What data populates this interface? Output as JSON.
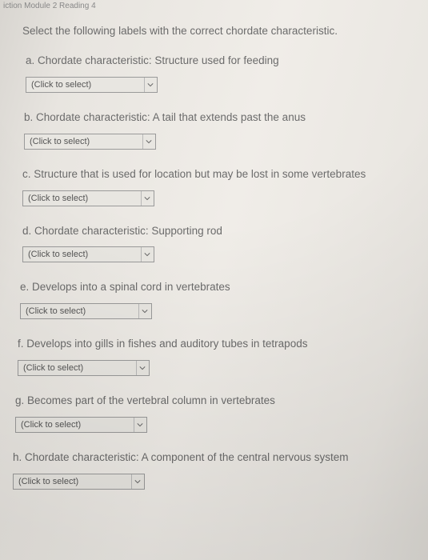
{
  "breadcrumb": "iction Module 2 Reading 4",
  "instruction": "Select the following labels with the correct chordate characteristic.",
  "select_placeholder": "(Click to select)",
  "questions": [
    {
      "letter": "a",
      "text": "Chordate characteristic: Structure used for feeding"
    },
    {
      "letter": "b",
      "text": "Chordate characteristic: A tail that extends past the anus"
    },
    {
      "letter": "c",
      "text": "Structure that is used for location but may be lost in some vertebrates"
    },
    {
      "letter": "d",
      "text": "Chordate characteristic: Supporting rod"
    },
    {
      "letter": "e",
      "text": "Develops into a spinal cord in vertebrates"
    },
    {
      "letter": "f",
      "text": "Develops into gills in fishes and auditory tubes in tetrapods"
    },
    {
      "letter": "g",
      "text": "Becomes part of the vertebral column in vertebrates"
    },
    {
      "letter": "h",
      "text": "Chordate characteristic: A component of the central nervous system"
    }
  ]
}
